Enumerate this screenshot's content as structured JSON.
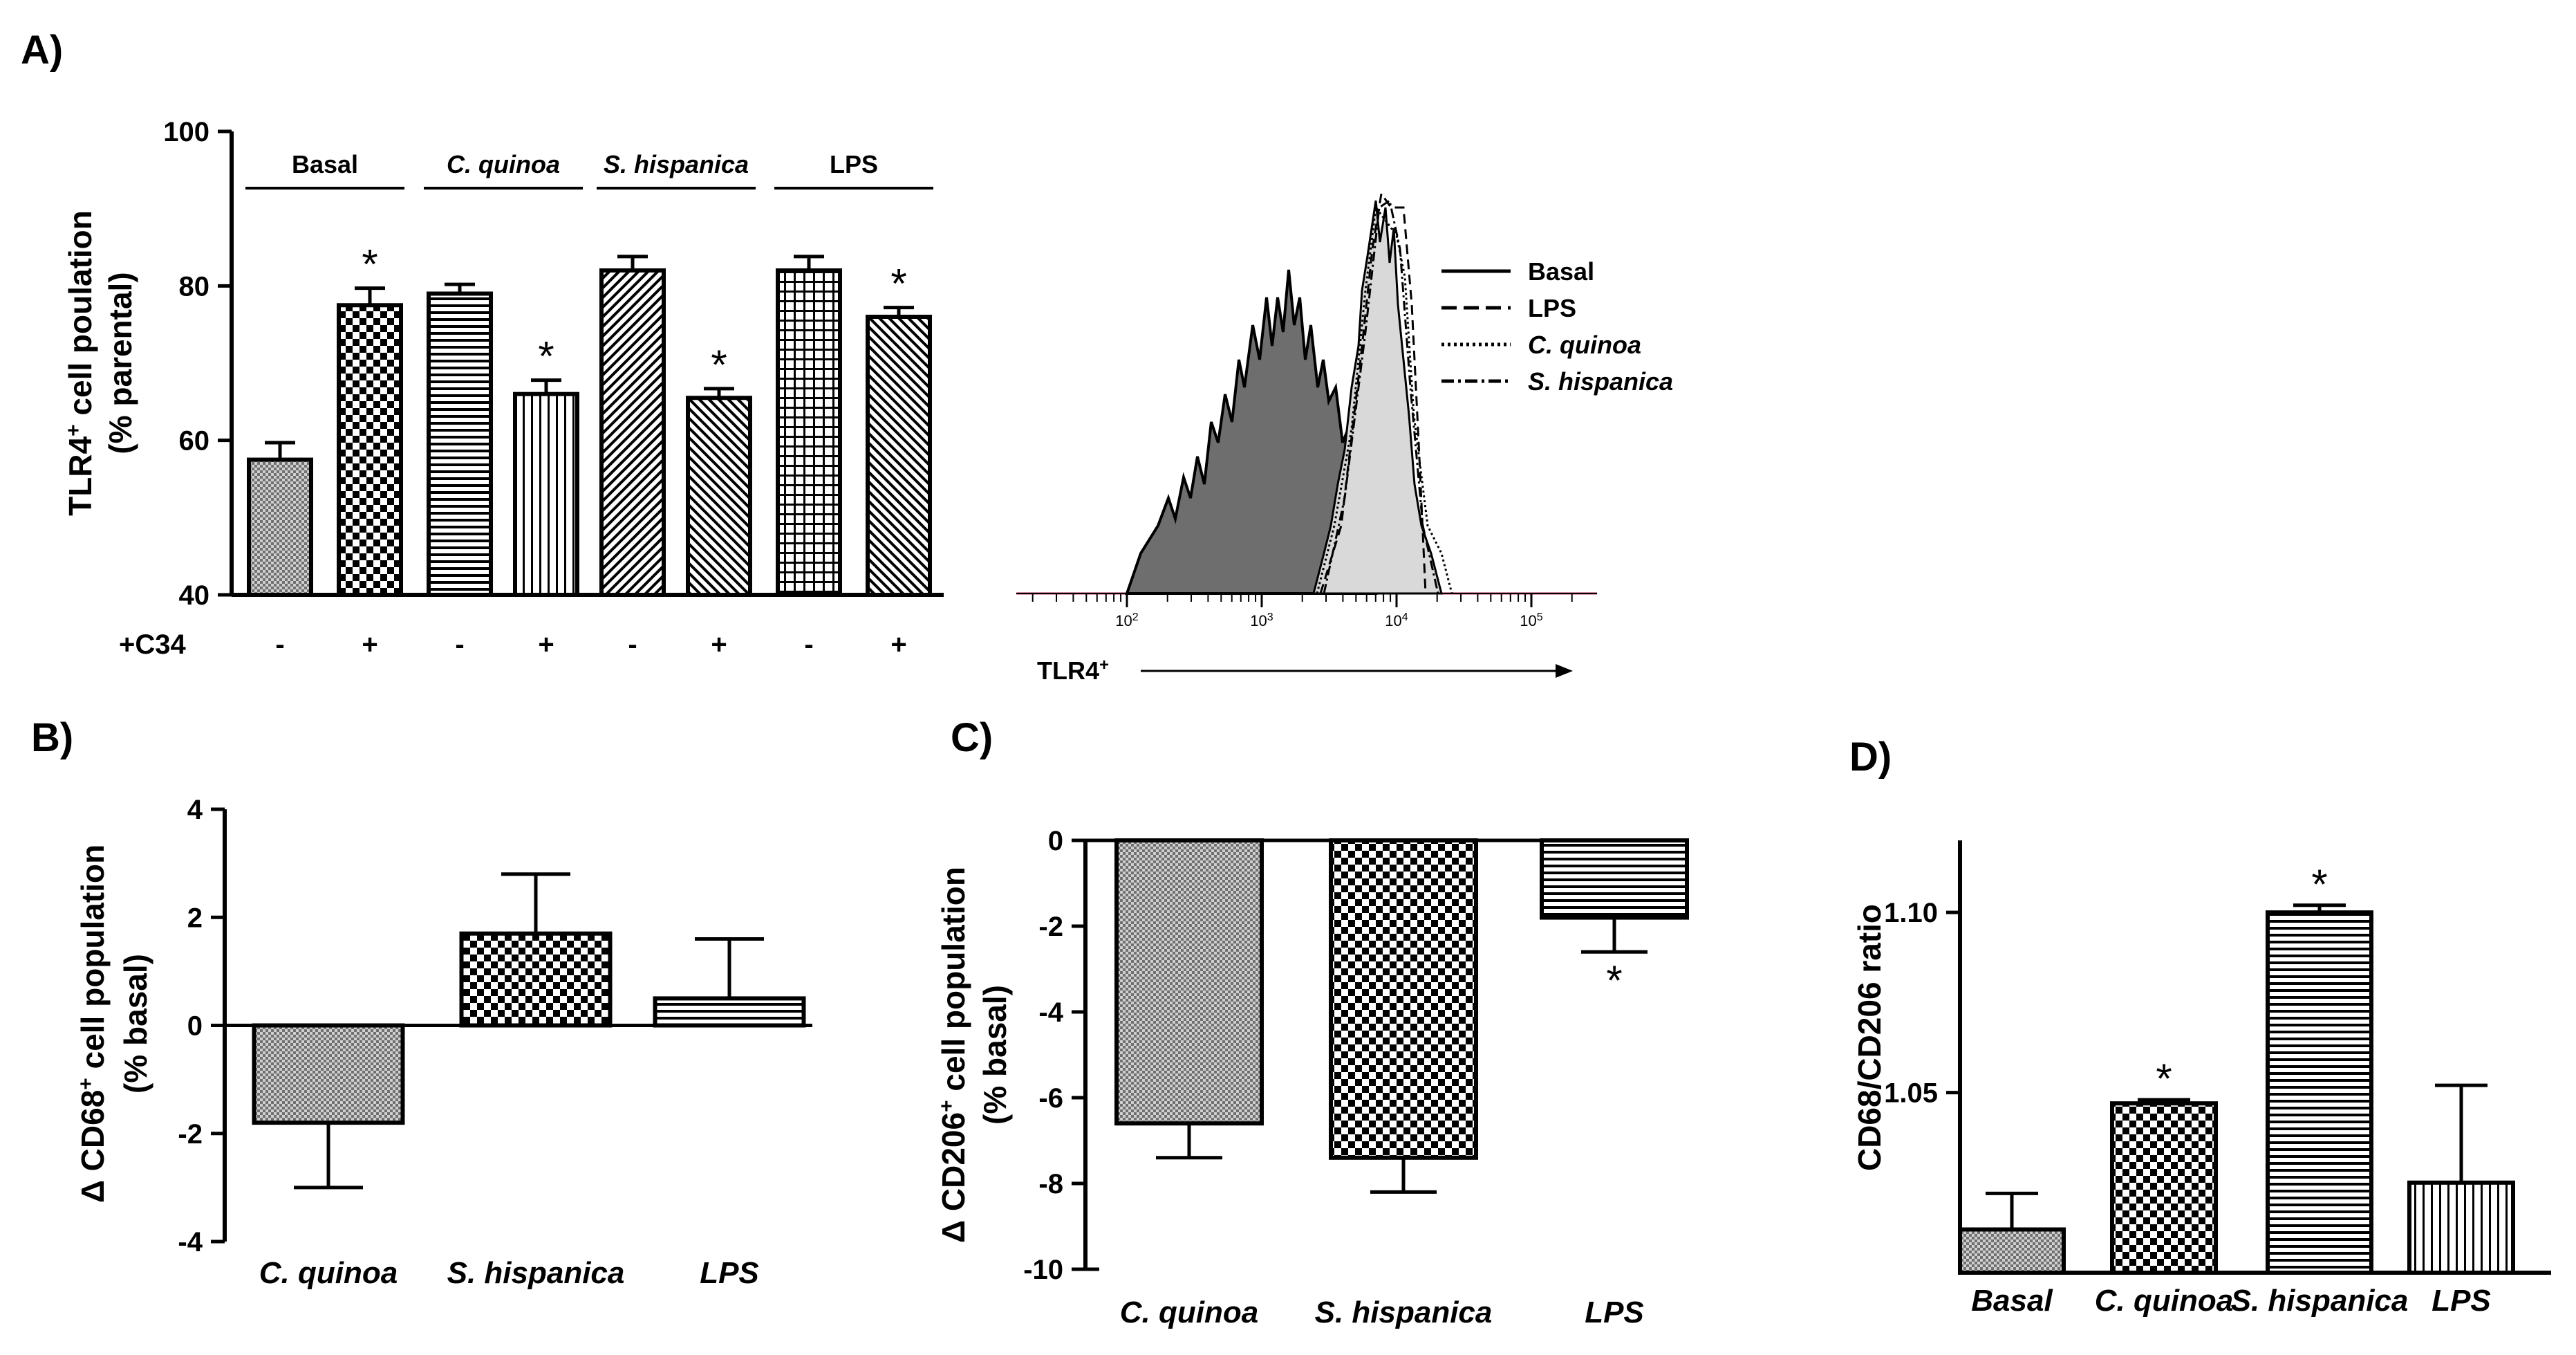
{
  "panels": {
    "A": "A)",
    "B": "B)",
    "C": "C)",
    "D": "D)"
  },
  "panelA": {
    "ylabel_main": "TLR4",
    "ylabel_sup": "+",
    "ylabel_rest": " cell poulation",
    "ylabel2": "(% parental)",
    "treatment_label": "+C34",
    "groups": [
      "Basal",
      "C. quinoa",
      "S. hispanica",
      "LPS"
    ],
    "histogram_axis_label": "TLR4",
    "histogram_axis_sup": "+",
    "histogram_ticks": [
      "10",
      "10",
      "10",
      "10"
    ],
    "histogram_tick_exps": [
      "2",
      "3",
      "4",
      "5"
    ],
    "legend": [
      "Basal",
      "LPS",
      "C. quinoa",
      "S. hispanica"
    ]
  },
  "panelB": {
    "ylabel_a": "Δ CD68",
    "ylabel_sup": "+",
    "ylabel_b": " cell population",
    "ylabel2": "(% basal)"
  },
  "panelC": {
    "ylabel_a": "Δ CD206",
    "ylabel_sup": "+",
    "ylabel_b": " cell population",
    "ylabel2": "(% basal)"
  },
  "panelD": {
    "ylabel": "CD68/CD206 ratio"
  },
  "chart_data": [
    {
      "type": "bar",
      "panel": "A",
      "categories": [
        "-",
        "+",
        "-",
        "+",
        "-",
        "+",
        "-",
        "+"
      ],
      "groups": [
        "Basal",
        "C. quinoa",
        "S. hispanica",
        "LPS"
      ],
      "values": [
        57.5,
        77.5,
        79,
        66,
        82,
        65.5,
        82,
        76
      ],
      "errors": [
        2.2,
        2.2,
        1.2,
        1.8,
        1.8,
        1.2,
        1.8,
        1.2
      ],
      "significant": [
        false,
        true,
        false,
        true,
        false,
        true,
        false,
        true
      ],
      "ylim": [
        40,
        100
      ],
      "yticks": [
        40,
        60,
        80,
        100
      ]
    },
    {
      "type": "bar",
      "panel": "B",
      "categories": [
        "C. quinoa",
        "S. hispanica",
        "LPS"
      ],
      "values": [
        -1.8,
        1.7,
        0.5
      ],
      "errors": [
        1.2,
        1.1,
        1.1
      ],
      "ylim": [
        -4,
        4
      ],
      "yticks": [
        -4,
        -2,
        0,
        2,
        4
      ]
    },
    {
      "type": "bar",
      "panel": "C",
      "categories": [
        "C. quinoa",
        "S. hispanica",
        "LPS"
      ],
      "values": [
        -6.6,
        -7.4,
        -1.8
      ],
      "errors": [
        0.8,
        0.8,
        0.8
      ],
      "significant": [
        false,
        false,
        true
      ],
      "ylim": [
        -10,
        0
      ],
      "yticks": [
        -10,
        -8,
        -6,
        -4,
        -2,
        0
      ]
    },
    {
      "type": "bar",
      "panel": "D",
      "categories": [
        "Basal",
        "C. quinoa",
        "S. hispanica",
        "LPS"
      ],
      "values": [
        1.012,
        1.047,
        1.1,
        1.025
      ],
      "errors": [
        0.01,
        0.001,
        0.002,
        0.027
      ],
      "significant": [
        false,
        true,
        true,
        false
      ],
      "ylim": [
        1.0,
        1.12
      ],
      "yticks": [
        1.05,
        1.1
      ]
    }
  ]
}
